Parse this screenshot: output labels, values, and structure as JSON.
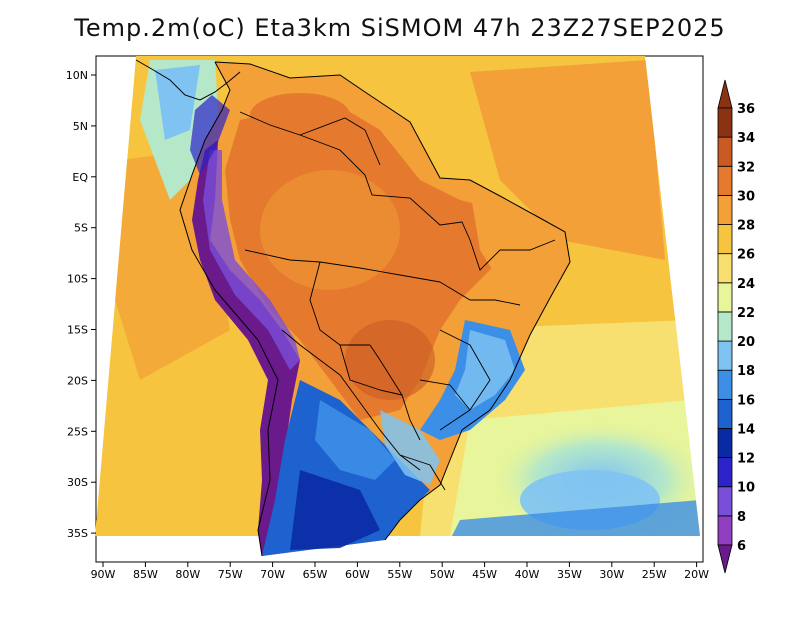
{
  "title": "Temp.2m(oC) Eta3km SiSMOM 47h 23Z27SEP2025",
  "map": {
    "type": "heatmap",
    "variable": "2 m air temperature",
    "units": "oC",
    "lon_ticks": [
      "90W",
      "85W",
      "80W",
      "75W",
      "70W",
      "65W",
      "60W",
      "55W",
      "50W",
      "45W",
      "40W",
      "35W",
      "30W",
      "25W",
      "20W"
    ],
    "lat_ticks": [
      "10N",
      "5N",
      "EQ",
      "5S",
      "10S",
      "15S",
      "20S",
      "25S",
      "30S",
      "35S"
    ],
    "lon_range": [
      -91,
      -20
    ],
    "lat_range": [
      -38,
      11
    ],
    "colorbar": {
      "levels": [
        "6",
        "8",
        "10",
        "12",
        "14",
        "16",
        "18",
        "20",
        "22",
        "24",
        "26",
        "28",
        "30",
        "32",
        "34",
        "36"
      ],
      "colors": [
        "#6a1a8a",
        "#8f3fbf",
        "#7a4fd8",
        "#2c24c8",
        "#0a2aa5",
        "#1e62d0",
        "#3c8fe6",
        "#7fc3f2",
        "#b5e8c8",
        "#e8f59a",
        "#f7e070",
        "#f6c43f",
        "#f2a037",
        "#e57a2f",
        "#c95a24",
        "#8b3212"
      ]
    }
  }
}
